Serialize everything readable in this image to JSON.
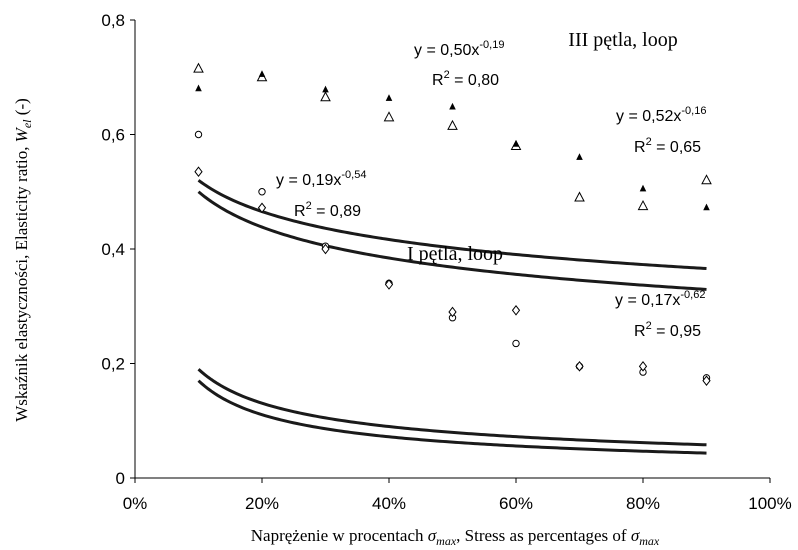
{
  "chart_data": {
    "type": "scatter",
    "title": "",
    "xlabel": "Naprężenie w procentach σmax, Stress as percentages of σmax",
    "xlabel_parts": {
      "prefix": "Naprężenie w procentach ",
      "sigma": "σ",
      "sub": "max",
      "middle": ", Stress as percentages of "
    },
    "ylabel": "Wskaźnik elastyczności, Elasticity ratio, Wel (-)",
    "ylabel_parts": {
      "prefix": "Wskaźnik elastyczności, Elasticity ratio, ",
      "w": "W",
      "sub": "el",
      "suffix": " (-)"
    },
    "xlim": [
      0,
      100
    ],
    "ylim": [
      0,
      0.8
    ],
    "x_ticks": [
      "0%",
      "20%",
      "40%",
      "60%",
      "80%",
      "100%"
    ],
    "y_ticks": [
      "0",
      "0,2",
      "0,4",
      "0,6",
      "0,8"
    ],
    "grid": false,
    "legend": "none",
    "colors": {
      "marker": "#000000",
      "trend": "#1a1a1a",
      "axis": "#000000"
    },
    "series": [
      {
        "marker": "triangle-open",
        "group": "III",
        "x": [
          10,
          20,
          30,
          40,
          50,
          60,
          70,
          80,
          90
        ],
        "y": [
          0.715,
          0.7,
          0.665,
          0.63,
          0.615,
          0.58,
          0.49,
          0.475,
          0.52
        ]
      },
      {
        "marker": "triangle-small",
        "group": "III",
        "x": [
          10,
          20,
          30,
          40,
          50,
          60,
          70,
          80,
          90
        ],
        "y": [
          0.68,
          0.705,
          0.678,
          0.663,
          0.648,
          0.583,
          0.56,
          0.505,
          0.472
        ]
      },
      {
        "marker": "circle-open",
        "group": "I",
        "x": [
          10,
          20,
          30,
          40,
          50,
          60,
          70,
          80,
          90
        ],
        "y": [
          0.6,
          0.5,
          0.405,
          0.34,
          0.28,
          0.235,
          0.195,
          0.185,
          0.175
        ]
      },
      {
        "marker": "diamond-open",
        "group": "I",
        "x": [
          10,
          20,
          30,
          40,
          50,
          60,
          70,
          80,
          90
        ],
        "y": [
          0.535,
          0.472,
          0.4,
          0.338,
          0.29,
          0.293,
          0.195,
          0.195,
          0.17
        ]
      }
    ],
    "trendlines": [
      {
        "a": 0.5,
        "b": -0.19,
        "x_range": [
          10,
          90
        ]
      },
      {
        "a": 0.52,
        "b": -0.16,
        "x_range": [
          10,
          90
        ]
      },
      {
        "a": 0.19,
        "b": -0.54,
        "x_range": [
          10,
          90
        ]
      },
      {
        "a": 0.17,
        "b": -0.62,
        "x_range": [
          10,
          90
        ]
      }
    ],
    "equations": [
      {
        "eq_text": "y = 0,50x",
        "exp": "-0,19",
        "r_text": "R",
        "r_sup": "2",
        "r_val": " = 0,80"
      },
      {
        "eq_text": "y = 0,52x",
        "exp": "-0,16",
        "r_text": "R",
        "r_sup": "2",
        "r_val": " = 0,65"
      },
      {
        "eq_text": "y = 0,19x",
        "exp": "-0,54",
        "r_text": "R",
        "r_sup": "2",
        "r_val": " = 0,89"
      },
      {
        "eq_text": "y = 0,17x",
        "exp": "-0,62",
        "r_text": "R",
        "r_sup": "2",
        "r_val": " = 0,95"
      }
    ],
    "group_labels": {
      "III": "III pętla, loop",
      "I": "I pętla, loop"
    }
  }
}
